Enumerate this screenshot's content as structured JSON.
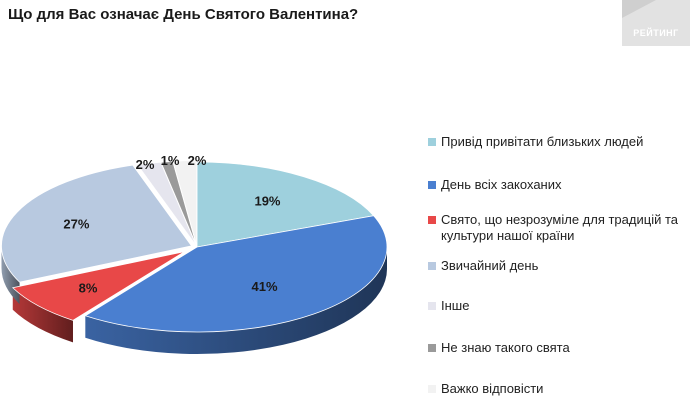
{
  "title": "Що для Вас означає День Святого Валентина?",
  "logo": {
    "text": "РЕЙТИНГ"
  },
  "colors": {
    "accent": "#4a7fd0",
    "background": "#ffffff"
  },
  "chart_data": {
    "type": "pie",
    "title": "Що для Вас означає День Святого Валентина?",
    "style": "3d-exploded",
    "legend_position": "right",
    "slices": [
      {
        "label": "Привід привітати близьких людей",
        "value": 19,
        "value_label": "19%",
        "color": "#9ed0dd"
      },
      {
        "label": "День всіх закоханих",
        "value": 41,
        "value_label": "41%",
        "color": "#4a7fd0"
      },
      {
        "label": "Свято, що незрозуміле для традицій та культури нашої країни",
        "value": 8,
        "value_label": "8%",
        "color": "#e84848"
      },
      {
        "label": "Звичайний день",
        "value": 27,
        "value_label": "27%",
        "color": "#b8c9e0"
      },
      {
        "label": "Інше",
        "value": 2,
        "value_label": "2%",
        "color": "#e5e5ee"
      },
      {
        "label": "Не знаю такого свята",
        "value": 1,
        "value_label": "1%",
        "color": "#9a9a9a"
      },
      {
        "label": "Важко відповісти",
        "value": 2,
        "value_label": "2%",
        "color": "#f2f2f2"
      }
    ]
  }
}
